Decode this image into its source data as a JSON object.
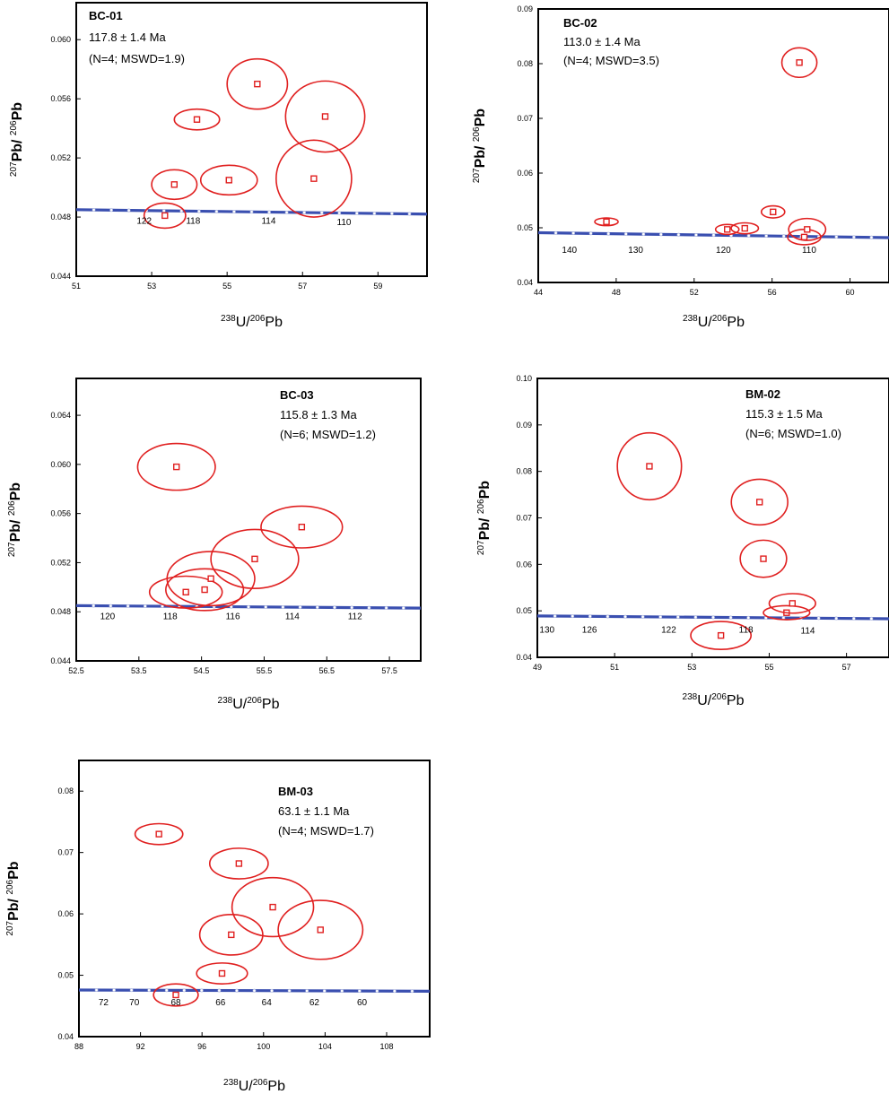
{
  "chart_data": [
    {
      "type": "scatter",
      "ylabel": {
        "pre": "207",
        "mid": "Pb/ ",
        "sup2": "206",
        "post": "Pb"
      },
      "xlabel": {
        "sup1": "238",
        "mid": "U/",
        "sup2": "206",
        "post": "Pb"
      },
      "xlim": [
        51,
        60.3
      ],
      "ylim": [
        0.044,
        0.0625
      ],
      "x_ticks": [
        51,
        53,
        55,
        57,
        59
      ],
      "x_tick_labels": [
        "51",
        "53",
        "55",
        "57",
        "59"
      ],
      "y_ticks": [
        0.044,
        0.048,
        0.052,
        0.056,
        0.06
      ],
      "y_tick_labels": [
        "0.044",
        "0.048",
        "0.052",
        "0.056",
        "0.060"
      ],
      "annotation": {
        "sample": "BC-01",
        "age": "117.8 ± 1.4 Ma",
        "stats": "(N=4; MSWD=1.9)"
      },
      "concordia": {
        "x": [
          51,
          60.3
        ],
        "y": [
          0.0485,
          0.0482
        ]
      },
      "age_labels": [
        {
          "text": "122",
          "x": 52.8,
          "y": 0.0478
        },
        {
          "text": "118",
          "x": 54.1,
          "y": 0.0478
        },
        {
          "text": "114",
          "x": 56.1,
          "y": 0.0478
        },
        {
          "text": "110",
          "x": 58.1,
          "y": 0.0477
        }
      ],
      "points": [
        {
          "x": 53.35,
          "y": 0.0481,
          "ex": 0.55,
          "ey": 0.00085
        },
        {
          "x": 53.6,
          "y": 0.0502,
          "ex": 0.6,
          "ey": 0.001
        },
        {
          "x": 54.2,
          "y": 0.0546,
          "ex": 0.6,
          "ey": 0.0007
        },
        {
          "x": 55.05,
          "y": 0.0505,
          "ex": 0.75,
          "ey": 0.001
        },
        {
          "x": 55.8,
          "y": 0.057,
          "ex": 0.8,
          "ey": 0.0017
        },
        {
          "x": 57.3,
          "y": 0.0506,
          "ex": 1.0,
          "ey": 0.0026
        },
        {
          "x": 57.6,
          "y": 0.0548,
          "ex": 1.05,
          "ey": 0.0024
        }
      ]
    },
    {
      "type": "scatter",
      "ylabel": {
        "pre": "207",
        "mid": "Pb/ ",
        "sup2": "206",
        "post": "Pb"
      },
      "xlabel": {
        "sup1": "238",
        "mid": "U/",
        "sup2": "206",
        "post": "Pb"
      },
      "xlim": [
        44,
        62
      ],
      "ylim": [
        0.04,
        0.09
      ],
      "x_ticks": [
        44,
        48,
        52,
        56,
        60
      ],
      "x_tick_labels": [
        "44",
        "48",
        "52",
        "56",
        "60"
      ],
      "y_ticks": [
        0.04,
        0.05,
        0.06,
        0.07,
        0.08,
        0.09
      ],
      "y_tick_labels": [
        "0.04",
        "0.05",
        "0.06",
        "0.07",
        "0.08",
        "0.09"
      ],
      "annotation": {
        "sample": "BC-02",
        "age": "113.0 ± 1.4 Ma",
        "stats": "(N=4; MSWD=3.5)"
      },
      "concordia": {
        "x": [
          44,
          62
        ],
        "y": [
          0.0491,
          0.0482
        ]
      },
      "age_labels": [
        {
          "text": "140",
          "x": 45.6,
          "y": 0.0461
        },
        {
          "text": "130",
          "x": 49,
          "y": 0.0461
        },
        {
          "text": "120",
          "x": 53.5,
          "y": 0.0461
        },
        {
          "text": "110",
          "x": 57.9,
          "y": 0.0461
        }
      ],
      "points": [
        {
          "x": 47.5,
          "y": 0.0511,
          "ex": 0.6,
          "ey": 0.0007
        },
        {
          "x": 53.7,
          "y": 0.0497,
          "ex": 0.6,
          "ey": 0.0009
        },
        {
          "x": 54.6,
          "y": 0.0499,
          "ex": 0.7,
          "ey": 0.001
        },
        {
          "x": 56.05,
          "y": 0.0529,
          "ex": 0.6,
          "ey": 0.0011
        },
        {
          "x": 57.4,
          "y": 0.0802,
          "ex": 0.9,
          "ey": 0.0027
        },
        {
          "x": 57.65,
          "y": 0.0483,
          "ex": 0.85,
          "ey": 0.0014
        },
        {
          "x": 57.8,
          "y": 0.0497,
          "ex": 0.95,
          "ey": 0.002
        }
      ]
    },
    {
      "type": "scatter",
      "ylabel": {
        "pre": "207",
        "mid": "Pb/ ",
        "sup2": "206",
        "post": "Pb"
      },
      "xlabel": {
        "sup1": "238",
        "mid": "U/",
        "sup2": "206",
        "post": "Pb"
      },
      "xlim": [
        52.5,
        58
      ],
      "ylim": [
        0.044,
        0.067
      ],
      "x_ticks": [
        52.5,
        53.5,
        54.5,
        55.5,
        56.5,
        57.5
      ],
      "x_tick_labels": [
        "52.5",
        "53.5",
        "54.5",
        "55.5",
        "56.5",
        "57.5"
      ],
      "y_ticks": [
        0.044,
        0.048,
        0.052,
        0.056,
        0.06,
        0.064
      ],
      "y_tick_labels": [
        "0.044",
        "0.048",
        "0.052",
        "0.056",
        "0.060",
        "0.064"
      ],
      "annotation": {
        "sample": "BC-03",
        "age": "115.8 ± 1.3 Ma",
        "stats": "(N=6; MSWD=1.2)"
      },
      "concordia": {
        "x": [
          52.5,
          58
        ],
        "y": [
          0.0485,
          0.0483
        ]
      },
      "age_labels": [
        {
          "text": "120",
          "x": 53.0,
          "y": 0.0477
        },
        {
          "text": "118",
          "x": 54.0,
          "y": 0.0477
        },
        {
          "text": "116",
          "x": 55.0,
          "y": 0.0477
        },
        {
          "text": "114",
          "x": 55.95,
          "y": 0.0477
        },
        {
          "text": "112",
          "x": 56.95,
          "y": 0.0477
        }
      ],
      "points": [
        {
          "x": 54.1,
          "y": 0.0598,
          "ex": 0.62,
          "ey": 0.0019
        },
        {
          "x": 54.25,
          "y": 0.0496,
          "ex": 0.58,
          "ey": 0.0013
        },
        {
          "x": 54.55,
          "y": 0.0498,
          "ex": 0.62,
          "ey": 0.0017
        },
        {
          "x": 54.65,
          "y": 0.0507,
          "ex": 0.7,
          "ey": 0.0022
        },
        {
          "x": 55.35,
          "y": 0.0523,
          "ex": 0.7,
          "ey": 0.0024
        },
        {
          "x": 56.1,
          "y": 0.0549,
          "ex": 0.65,
          "ey": 0.0017
        }
      ]
    },
    {
      "type": "scatter",
      "ylabel": {
        "pre": "207",
        "mid": "Pb/ ",
        "sup2": "206",
        "post": "Pb"
      },
      "xlabel": {
        "sup1": "238",
        "mid": "U/",
        "sup2": "206",
        "post": "Pb"
      },
      "xlim": [
        49,
        58.1
      ],
      "ylim": [
        0.04,
        0.1
      ],
      "x_ticks": [
        49,
        51,
        53,
        55,
        57
      ],
      "x_tick_labels": [
        "49",
        "51",
        "53",
        "55",
        "57"
      ],
      "y_ticks": [
        0.04,
        0.05,
        0.06,
        0.07,
        0.08,
        0.09,
        0.1
      ],
      "y_tick_labels": [
        "0.04",
        "0.05",
        "0.06",
        "0.07",
        "0.08",
        "0.09",
        "0.10"
      ],
      "annotation": {
        "sample": "BM-02",
        "age": "115.3 ± 1.5 Ma",
        "stats": "(N=6; MSWD=1.0)"
      },
      "concordia": {
        "x": [
          49,
          58.1
        ],
        "y": [
          0.0489,
          0.0483
        ]
      },
      "age_labels": [
        {
          "text": "130",
          "x": 49.25,
          "y": 0.0461
        },
        {
          "text": "126",
          "x": 50.35,
          "y": 0.0461
        },
        {
          "text": "122",
          "x": 52.4,
          "y": 0.0461
        },
        {
          "text": "118",
          "x": 54.4,
          "y": 0.0461
        },
        {
          "text": "114",
          "x": 56.0,
          "y": 0.0459
        }
      ],
      "points": [
        {
          "x": 51.9,
          "y": 0.0811,
          "ex": 0.83,
          "ey": 0.0072
        },
        {
          "x": 53.75,
          "y": 0.0447,
          "ex": 0.78,
          "ey": 0.003
        },
        {
          "x": 54.75,
          "y": 0.0734,
          "ex": 0.73,
          "ey": 0.0049
        },
        {
          "x": 54.85,
          "y": 0.0612,
          "ex": 0.6,
          "ey": 0.004
        },
        {
          "x": 55.45,
          "y": 0.0496,
          "ex": 0.6,
          "ey": 0.0015
        },
        {
          "x": 55.6,
          "y": 0.0516,
          "ex": 0.6,
          "ey": 0.0021
        }
      ]
    },
    {
      "type": "scatter",
      "ylabel": {
        "pre": "207",
        "mid": "Pb/ ",
        "sup2": "206",
        "post": "Pb"
      },
      "xlabel": {
        "sup1": "238",
        "mid": "U/",
        "sup2": "206",
        "post": "Pb"
      },
      "xlim": [
        88,
        110.8
      ],
      "ylim": [
        0.04,
        0.085
      ],
      "x_ticks": [
        88,
        92,
        96,
        100,
        104,
        108
      ],
      "x_tick_labels": [
        "88",
        "92",
        "96",
        "100",
        "104",
        "108"
      ],
      "y_ticks": [
        0.04,
        0.05,
        0.06,
        0.07,
        0.08
      ],
      "y_tick_labels": [
        "0.04",
        "0.05",
        "0.06",
        "0.07",
        "0.08"
      ],
      "annotation": {
        "sample": "BM-03",
        "age": "63.1 ± 1.1 Ma",
        "stats": "(N=4; MSWD=1.7)"
      },
      "concordia": {
        "x": [
          88,
          110.8
        ],
        "y": [
          0.0476,
          0.0474
        ]
      },
      "age_labels": [
        {
          "text": "72",
          "x": 89.6,
          "y": 0.0457
        },
        {
          "text": "70",
          "x": 91.6,
          "y": 0.0457
        },
        {
          "text": "68",
          "x": 94.3,
          "y": 0.0457
        },
        {
          "text": "66",
          "x": 97.2,
          "y": 0.0457
        },
        {
          "text": "64",
          "x": 100.2,
          "y": 0.0457
        },
        {
          "text": "62",
          "x": 103.3,
          "y": 0.0457
        },
        {
          "text": "60",
          "x": 106.4,
          "y": 0.0457
        }
      ],
      "points": [
        {
          "x": 93.2,
          "y": 0.073,
          "ex": 1.55,
          "ey": 0.0017
        },
        {
          "x": 94.3,
          "y": 0.0468,
          "ex": 1.45,
          "ey": 0.0018
        },
        {
          "x": 97.3,
          "y": 0.0503,
          "ex": 1.65,
          "ey": 0.0017
        },
        {
          "x": 97.9,
          "y": 0.0566,
          "ex": 2.05,
          "ey": 0.0033
        },
        {
          "x": 98.4,
          "y": 0.0682,
          "ex": 1.9,
          "ey": 0.0025
        },
        {
          "x": 100.6,
          "y": 0.0611,
          "ex": 2.65,
          "ey": 0.0048
        },
        {
          "x": 103.7,
          "y": 0.0574,
          "ex": 2.75,
          "ey": 0.0048
        }
      ]
    }
  ]
}
